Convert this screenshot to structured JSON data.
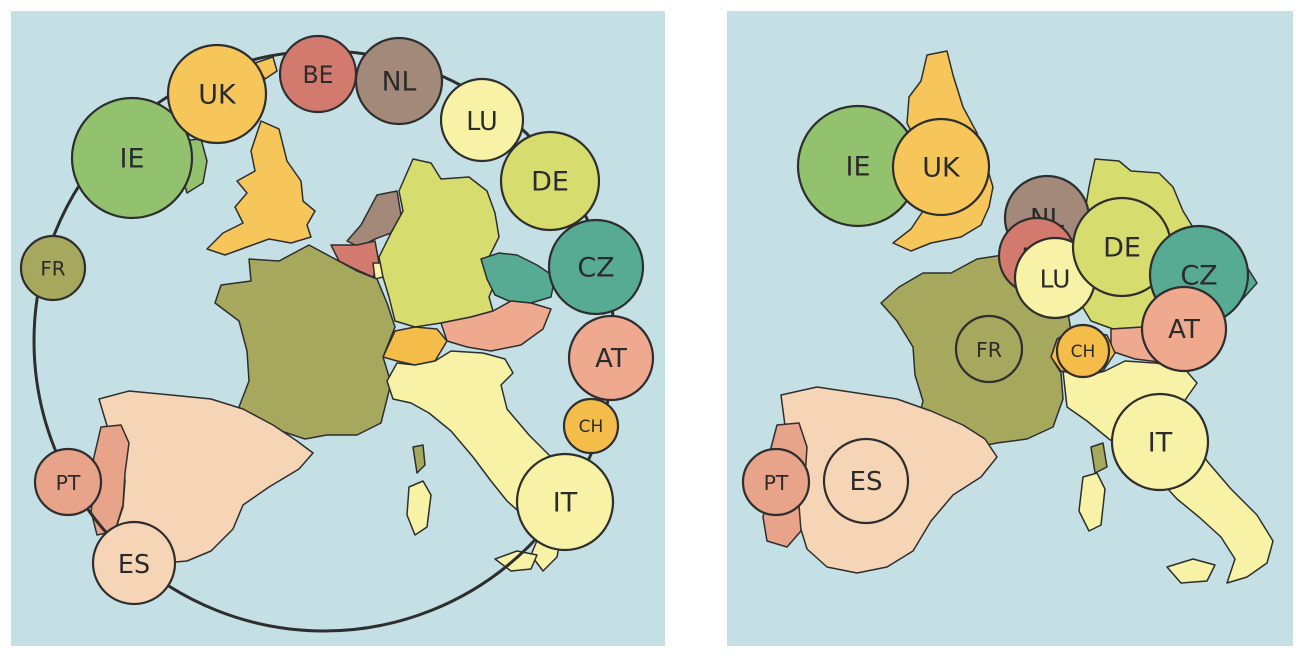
{
  "colors": {
    "sea": "#c5e0e5",
    "IE": "#93c26e",
    "UK": "#f6c65a",
    "BE": "#d27a6e",
    "NL": "#a38979",
    "LU": "#f8f2a6",
    "DE": "#d6dd6e",
    "CZ": "#56ab92",
    "AT": "#eea98f",
    "CH": "#f4bd4a",
    "IT": "#f8f2a6",
    "ES": "#f6d5b6",
    "PT": "#e8a48a",
    "FR": "#a6a85e"
  },
  "left_map": {
    "bubbles": [
      {
        "code": "IE",
        "label": "IE"
      },
      {
        "code": "UK",
        "label": "UK"
      },
      {
        "code": "BE",
        "label": "BE"
      },
      {
        "code": "NL",
        "label": "NL"
      },
      {
        "code": "LU",
        "label": "LU"
      },
      {
        "code": "DE",
        "label": "DE"
      },
      {
        "code": "CZ",
        "label": "CZ"
      },
      {
        "code": "AT",
        "label": "AT"
      },
      {
        "code": "CH",
        "label": "CH"
      },
      {
        "code": "IT",
        "label": "IT"
      },
      {
        "code": "ES",
        "label": "ES"
      },
      {
        "code": "PT",
        "label": "PT"
      },
      {
        "code": "FR",
        "label": "FR"
      }
    ]
  },
  "right_map": {
    "bubbles": [
      {
        "code": "IE",
        "label": "IE"
      },
      {
        "code": "UK",
        "label": "UK"
      },
      {
        "code": "NL",
        "label": "NL"
      },
      {
        "code": "BE",
        "label": "BE"
      },
      {
        "code": "LU",
        "label": "LU"
      },
      {
        "code": "DE",
        "label": "DE"
      },
      {
        "code": "CZ",
        "label": "CZ"
      },
      {
        "code": "AT",
        "label": "AT"
      },
      {
        "code": "FR",
        "label": "FR"
      },
      {
        "code": "CH",
        "label": "CH"
      },
      {
        "code": "IT",
        "label": "IT"
      },
      {
        "code": "PT",
        "label": "PT"
      },
      {
        "code": "ES",
        "label": "ES"
      }
    ]
  }
}
